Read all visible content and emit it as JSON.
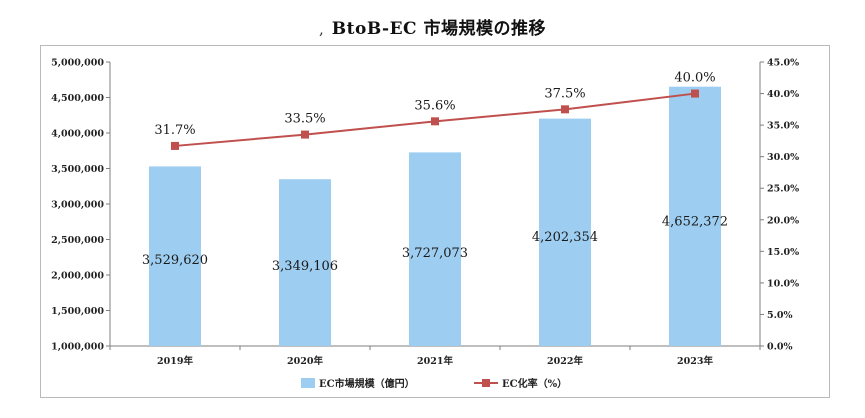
{
  "title": "BtoB-EC 市場規模の推移",
  "title_mark": ",",
  "chart_data": {
    "type": "bar",
    "title": "BtoB-EC 市場規模の推移",
    "categories": [
      "2019年",
      "2020年",
      "2021年",
      "2022年",
      "2023年"
    ],
    "series": [
      {
        "name": "EC市場規模（億円）",
        "type": "bar",
        "axis": "left",
        "color": "#9dcdf0",
        "values": [
          3529620,
          3349106,
          3727073,
          4202354,
          4652372
        ],
        "labels": [
          "3,529,620",
          "3,349,106",
          "3,727,073",
          "4,202,354",
          "4,652,372"
        ]
      },
      {
        "name": "EC化率（%）",
        "type": "line",
        "axis": "right",
        "color": "#c0504d",
        "values": [
          31.7,
          33.5,
          35.6,
          37.5,
          40.0
        ],
        "labels": [
          "31.7%",
          "33.5%",
          "35.6%",
          "37.5%",
          "40.0%"
        ]
      }
    ],
    "y_left": {
      "lim": [
        1000000,
        5000000
      ],
      "ticks": [
        "1,000,000",
        "1,500,000",
        "2,000,000",
        "2,500,000",
        "3,000,000",
        "3,500,000",
        "4,000,000",
        "4,500,000",
        "5,000,000"
      ]
    },
    "y_right": {
      "lim": [
        0,
        45
      ],
      "ticks": [
        "0.0%",
        "5.0%",
        "10.0%",
        "15.0%",
        "20.0%",
        "25.0%",
        "30.0%",
        "35.0%",
        "40.0%",
        "45.0%"
      ]
    },
    "grid": false,
    "legend": "bottom"
  }
}
